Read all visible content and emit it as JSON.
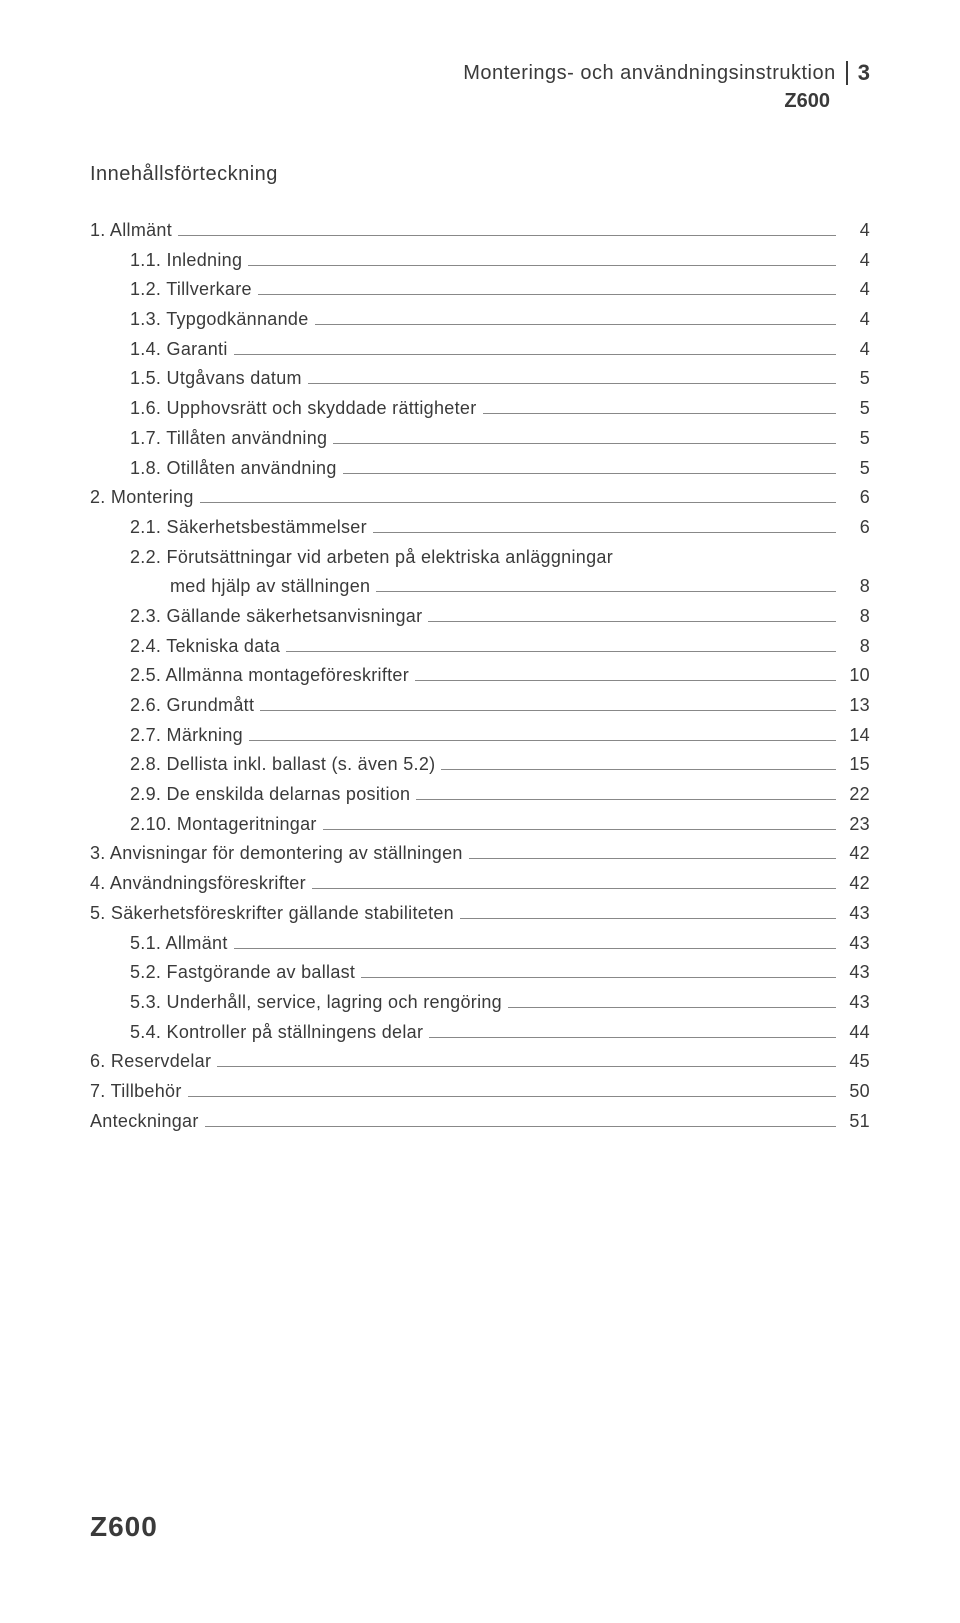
{
  "header": {
    "title": "Monterings- och användningsinstruktion",
    "product": "Z600",
    "page": "3"
  },
  "toc_title": "Innehållsförteckning",
  "toc": [
    {
      "label": "1. Allmänt",
      "page": "4",
      "indent": 0
    },
    {
      "label": "1.1. Inledning",
      "page": "4",
      "indent": 1
    },
    {
      "label": "1.2. Tillverkare",
      "page": "4",
      "indent": 1
    },
    {
      "label": "1.3. Typgodkännande",
      "page": "4",
      "indent": 1
    },
    {
      "label": "1.4. Garanti",
      "page": "4",
      "indent": 1
    },
    {
      "label": "1.5. Utgåvans datum",
      "page": "5",
      "indent": 1
    },
    {
      "label": "1.6. Upphovsrätt och skyddade rättigheter",
      "page": "5",
      "indent": 1
    },
    {
      "label": "1.7. Tillåten användning",
      "page": "5",
      "indent": 1
    },
    {
      "label": "1.8. Otillåten användning",
      "page": "5",
      "indent": 1
    },
    {
      "label": "2. Montering",
      "page": "6",
      "indent": 0
    },
    {
      "label": "2.1. Säkerhetsbestämmelser",
      "page": "6",
      "indent": 1
    },
    {
      "label": "2.2. Förutsättningar vid arbeten på elektriska anläggningar",
      "label2": "med hjälp av ställningen",
      "page": "8",
      "indent": 1,
      "multi": true
    },
    {
      "label": "2.3. Gällande säkerhetsanvisningar",
      "page": "8",
      "indent": 1
    },
    {
      "label": "2.4. Tekniska data",
      "page": "8",
      "indent": 1
    },
    {
      "label": "2.5. Allmänna montageföreskrifter",
      "page": "10",
      "indent": 1
    },
    {
      "label": "2.6. Grundmått",
      "page": "13",
      "indent": 1
    },
    {
      "label": "2.7. Märkning",
      "page": "14",
      "indent": 1
    },
    {
      "label": "2.8. Dellista inkl. ballast (s. även 5.2)",
      "page": "15",
      "indent": 1
    },
    {
      "label": "2.9. De enskilda delarnas position",
      "page": "22",
      "indent": 1
    },
    {
      "label": "2.10. Montageritningar",
      "page": "23",
      "indent": 1
    },
    {
      "label": "3. Anvisningar för demontering av ställningen",
      "page": "42",
      "indent": 0
    },
    {
      "label": "4. Användningsföreskrifter",
      "page": "42",
      "indent": 0
    },
    {
      "label": "5. Säkerhetsföreskrifter gällande stabiliteten",
      "page": "43",
      "indent": 0
    },
    {
      "label": "5.1. Allmänt",
      "page": "43",
      "indent": 1
    },
    {
      "label": "5.2. Fastgörande av ballast",
      "page": "43",
      "indent": 1
    },
    {
      "label": "5.3. Underhåll, service, lagring och rengöring",
      "page": "43",
      "indent": 1
    },
    {
      "label": "5.4. Kontroller på ställningens delar",
      "page": "44",
      "indent": 1
    },
    {
      "label": "6. Reservdelar",
      "page": "45",
      "indent": 0
    },
    {
      "label": "7. Tillbehör",
      "page": "50",
      "indent": 0
    },
    {
      "label": "Anteckningar",
      "page": "51",
      "indent": 0
    }
  ],
  "footer": "Z600"
}
